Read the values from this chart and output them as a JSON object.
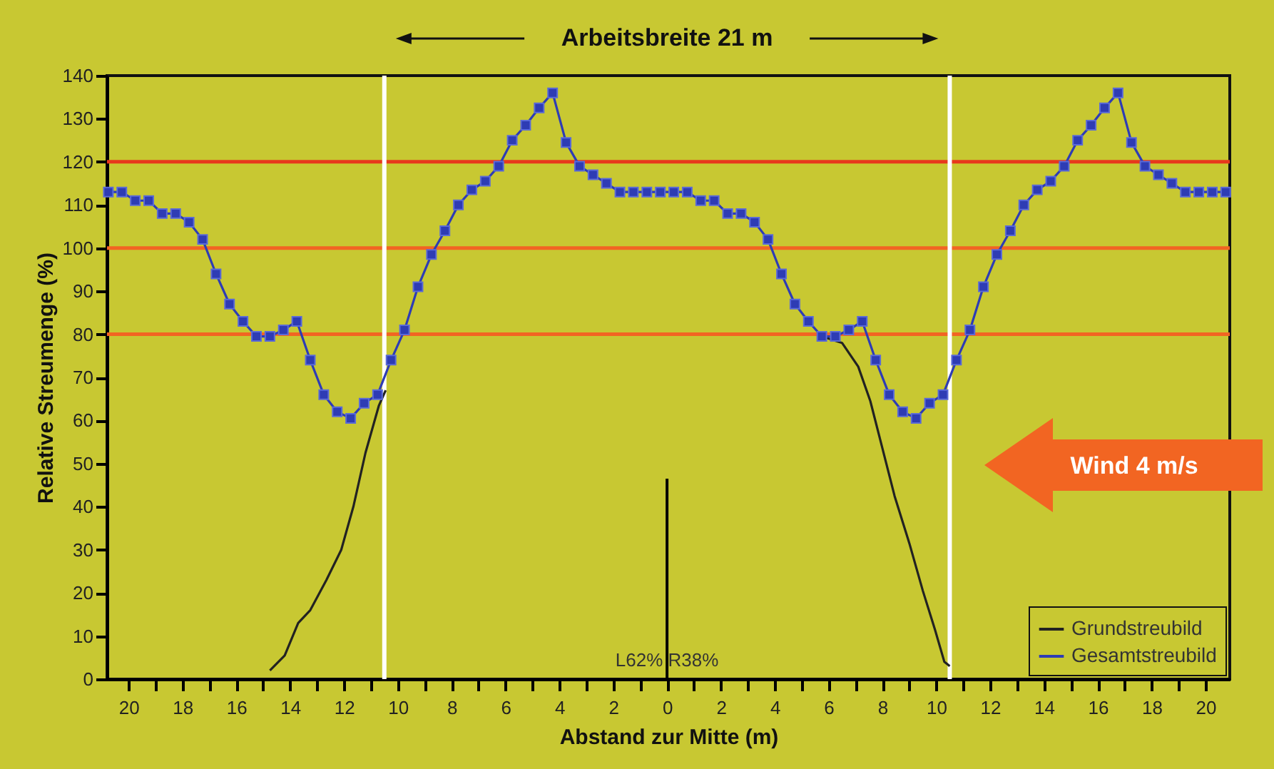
{
  "chart_data": {
    "type": "line",
    "xlabel": "Abstand zur Mitte (m)",
    "ylabel": "Relative Streumenge (%)",
    "xlim": [
      -20.8,
      20.9
    ],
    "ylim": [
      0,
      140
    ],
    "xticks": [
      {
        "value": -20,
        "label": "20"
      },
      {
        "value": -19,
        "label": null
      },
      {
        "value": -18,
        "label": "18"
      },
      {
        "value": -17,
        "label": null
      },
      {
        "value": -16,
        "label": "16"
      },
      {
        "value": -15,
        "label": null
      },
      {
        "value": -14,
        "label": "14"
      },
      {
        "value": -13,
        "label": null
      },
      {
        "value": -12,
        "label": "12"
      },
      {
        "value": -11,
        "label": null
      },
      {
        "value": -10,
        "label": "10"
      },
      {
        "value": -9,
        "label": null
      },
      {
        "value": -8,
        "label": "8"
      },
      {
        "value": -7,
        "label": null
      },
      {
        "value": -6,
        "label": "6"
      },
      {
        "value": -5,
        "label": null
      },
      {
        "value": -4,
        "label": "4"
      },
      {
        "value": -3,
        "label": null
      },
      {
        "value": -2,
        "label": "2"
      },
      {
        "value": -1,
        "label": null
      },
      0,
      {
        "value": 1,
        "label": null
      },
      2,
      {
        "value": 3,
        "label": null
      },
      4,
      {
        "value": 5,
        "label": null
      },
      6,
      {
        "value": 7,
        "label": null
      },
      8,
      {
        "value": 9,
        "label": null
      },
      10,
      {
        "value": 11,
        "label": null
      },
      12,
      {
        "value": 13,
        "label": null
      },
      14,
      {
        "value": 15,
        "label": null
      },
      16,
      {
        "value": 17,
        "label": null
      },
      18,
      {
        "value": 19,
        "label": null
      },
      20
    ],
    "yticks": [
      0,
      10,
      20,
      30,
      40,
      50,
      60,
      70,
      80,
      90,
      100,
      110,
      120,
      130,
      140
    ],
    "grid": false,
    "legend": "bottom right",
    "series": [
      {
        "name": "Grundstreubild",
        "color": "#222222",
        "x": [
          -14.75,
          -14.2,
          -13.7,
          -13.25,
          -12.65,
          -12.1,
          -11.65,
          -11.2,
          -10.7,
          -10.45,
          0,
          5.75,
          6.5,
          7.1,
          7.55,
          8,
          8.45,
          9,
          9.5,
          9.95,
          10.3,
          10.5
        ],
        "values": [
          2,
          5.5,
          13,
          16,
          23,
          30,
          40,
          52.5,
          63.5,
          67,
          null,
          79.5,
          78,
          72.5,
          64.5,
          53.5,
          42.5,
          31.5,
          20.5,
          11.5,
          4,
          3
        ]
      },
      {
        "name": "Gesamtstreubild",
        "color": "#2e3cb4",
        "marker": "square",
        "x": [
          -20.75,
          -20.25,
          -19.75,
          -19.25,
          -18.75,
          -18.25,
          -17.75,
          -17.25,
          -16.75,
          -16.25,
          -15.75,
          -15.25,
          -14.75,
          -14.25,
          -13.75,
          -13.25,
          -12.75,
          -12.25,
          -11.75,
          -11.25,
          -10.75,
          -10.25,
          -9.75,
          -9.25,
          -8.75,
          -8.25,
          -7.75,
          -7.25,
          -6.75,
          -6.25,
          -5.75,
          -5.25,
          -4.75,
          -4.25,
          -3.75,
          -3.25,
          -2.75,
          -2.25,
          -1.75,
          -1.25,
          -0.75,
          -0.25,
          0.25,
          0.75,
          1.25,
          1.75,
          2.25,
          2.75,
          3.25,
          3.75,
          4.25,
          4.75,
          5.25,
          5.75,
          6.25,
          6.75,
          7.25,
          7.75,
          8.25,
          8.75,
          9.25,
          9.75,
          10.25,
          10.75,
          11.25,
          11.75,
          12.25,
          12.75,
          13.25,
          13.75,
          14.25,
          14.75,
          15.25,
          15.75,
          16.25,
          16.75,
          17.25,
          17.75,
          18.25,
          18.75,
          19.25,
          19.75,
          20.25,
          20.75
        ],
        "values": [
          113,
          113,
          111,
          111,
          108,
          108,
          106,
          102,
          94,
          87,
          83,
          79.5,
          79.5,
          81,
          83,
          74,
          66,
          62,
          60.5,
          64,
          66,
          74,
          81,
          91,
          98.5,
          104,
          110,
          113.5,
          115.5,
          119,
          125,
          128.5,
          132.5,
          136,
          124.5,
          119,
          117,
          115,
          113,
          113,
          113,
          113,
          113,
          113,
          111,
          111,
          108,
          108,
          106,
          102,
          94,
          87,
          83,
          79.5,
          79.5,
          81,
          83,
          74,
          66,
          62,
          60.5,
          64,
          66,
          74,
          81,
          91,
          98.5,
          104,
          110,
          113.5,
          115.5,
          119,
          125,
          128.5,
          132.5,
          136,
          124.5,
          119,
          117,
          115,
          113,
          113,
          113,
          113
        ]
      },
      {
        "color": "#000000",
        "x": [
          0,
          0
        ],
        "values": [
          0,
          46.5
        ]
      }
    ],
    "ref_lines": [
      {
        "axis": "y",
        "value": 80,
        "color": "#f26522"
      },
      {
        "axis": "y",
        "value": 100,
        "color": "#f26522"
      },
      {
        "axis": "y",
        "value": 120,
        "color": "#e8381c"
      },
      {
        "axis": "x",
        "value": -10.5,
        "color": "#ffffff"
      },
      {
        "axis": "x",
        "value": 10.5,
        "color": "#ffffff"
      }
    ],
    "annotations": [
      "Arbeitsbreite 21 m",
      "Wind 4 m/s",
      {
        "text": "L62% R38%",
        "x": 0,
        "y": 2
      }
    ]
  }
}
